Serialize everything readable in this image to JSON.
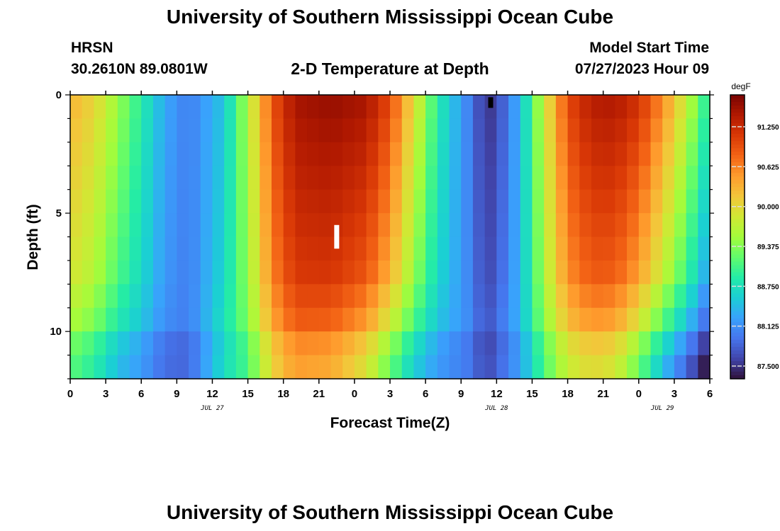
{
  "header": {
    "title": "University of Southern Mississippi Ocean Cube",
    "station": "HRSN",
    "coords": "30.2610N  89.0801W",
    "subtitle": "2-D Temperature at Depth",
    "start_label": "Model Start Time",
    "start_value": "07/27/2023 Hour 09"
  },
  "footer": {
    "title": "University of Southern Mississippi Ocean Cube"
  },
  "chart_data": {
    "type": "heatmap",
    "title": "2-D Temperature at Depth",
    "xlabel": "Forecast Time(Z)",
    "ylabel": "Depth (ft)",
    "colorbar_label": "degF",
    "x_ticks": [
      "0",
      "3",
      "6",
      "9",
      "12",
      "15",
      "18",
      "21",
      "0",
      "3",
      "6",
      "9",
      "12",
      "15",
      "18",
      "21",
      "0",
      "3",
      "6"
    ],
    "y_ticks": [
      "0",
      "5",
      "10"
    ],
    "ylim": [
      0,
      12
    ],
    "hours_total": 54,
    "depth_levels": 12,
    "date_labels": [
      {
        "text": "JUL 27",
        "hour": 12
      },
      {
        "text": "JUL 28",
        "hour": 36
      },
      {
        "text": "JUL 29",
        "hour": 50
      }
    ],
    "colorbar_ticks": [
      "91.250",
      "90.625",
      "90.000",
      "89.375",
      "88.750",
      "88.125",
      "87.500"
    ],
    "colorbar_tick_values": [
      91.25,
      90.625,
      90.0,
      89.375,
      88.75,
      88.125,
      87.5
    ],
    "vmin": 87.3,
    "vmax": 91.75,
    "colormap": [
      "#30123b",
      "#4145ab",
      "#4675ed",
      "#39a2fc",
      "#1bcfd4",
      "#24eca6",
      "#61fc6c",
      "#a4fc3b",
      "#d1e834",
      "#f3c63a",
      "#fe9b2d",
      "#f36315",
      "#d93806",
      "#b11901",
      "#7a0402"
    ],
    "temperature_profile": {
      "hours": [
        0,
        2,
        4,
        6,
        8,
        10,
        13,
        15,
        17,
        19,
        22,
        25,
        27,
        29,
        31,
        34,
        35,
        36,
        38,
        40,
        42,
        44,
        46,
        48,
        50,
        52,
        54
      ],
      "surface": [
        90.3,
        90.05,
        89.5,
        88.9,
        88.3,
        88.0,
        88.5,
        89.6,
        90.9,
        91.5,
        91.6,
        91.5,
        91.0,
        90.0,
        88.9,
        87.9,
        87.5,
        87.6,
        88.4,
        89.8,
        91.0,
        91.4,
        91.45,
        91.2,
        90.6,
        89.8,
        88.8
      ],
      "depth_gradient": [
        -0.055,
        -0.055,
        -0.05,
        -0.03,
        -0.015,
        0.0,
        0.02,
        -0.02,
        -0.04,
        -0.05,
        -0.06,
        -0.08,
        -0.09,
        -0.07,
        -0.03,
        0.01,
        0.015,
        0.02,
        0.0,
        -0.03,
        -0.06,
        -0.07,
        -0.08,
        -0.1,
        -0.11,
        -0.1,
        -0.08
      ]
    },
    "markers": [
      {
        "name": "white-marker",
        "hour": 22.5,
        "depth_from": 5.5,
        "depth_to": 6.5,
        "color": "#ffffff"
      },
      {
        "name": "black-marker",
        "hour": 35.5,
        "depth_from": 0.1,
        "depth_to": 0.55,
        "color": "#000000"
      }
    ]
  }
}
